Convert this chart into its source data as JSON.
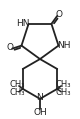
{
  "bg_color": "#ffffff",
  "bond_color": "#222222",
  "text_color": "#222222",
  "bond_lw": 1.3,
  "font_size": 6.5,
  "scale": 22,
  "pent_r": 0.9,
  "hex_r": 0.92,
  "xlim": [
    -40,
    40
  ],
  "ylim": [
    -52,
    52
  ]
}
